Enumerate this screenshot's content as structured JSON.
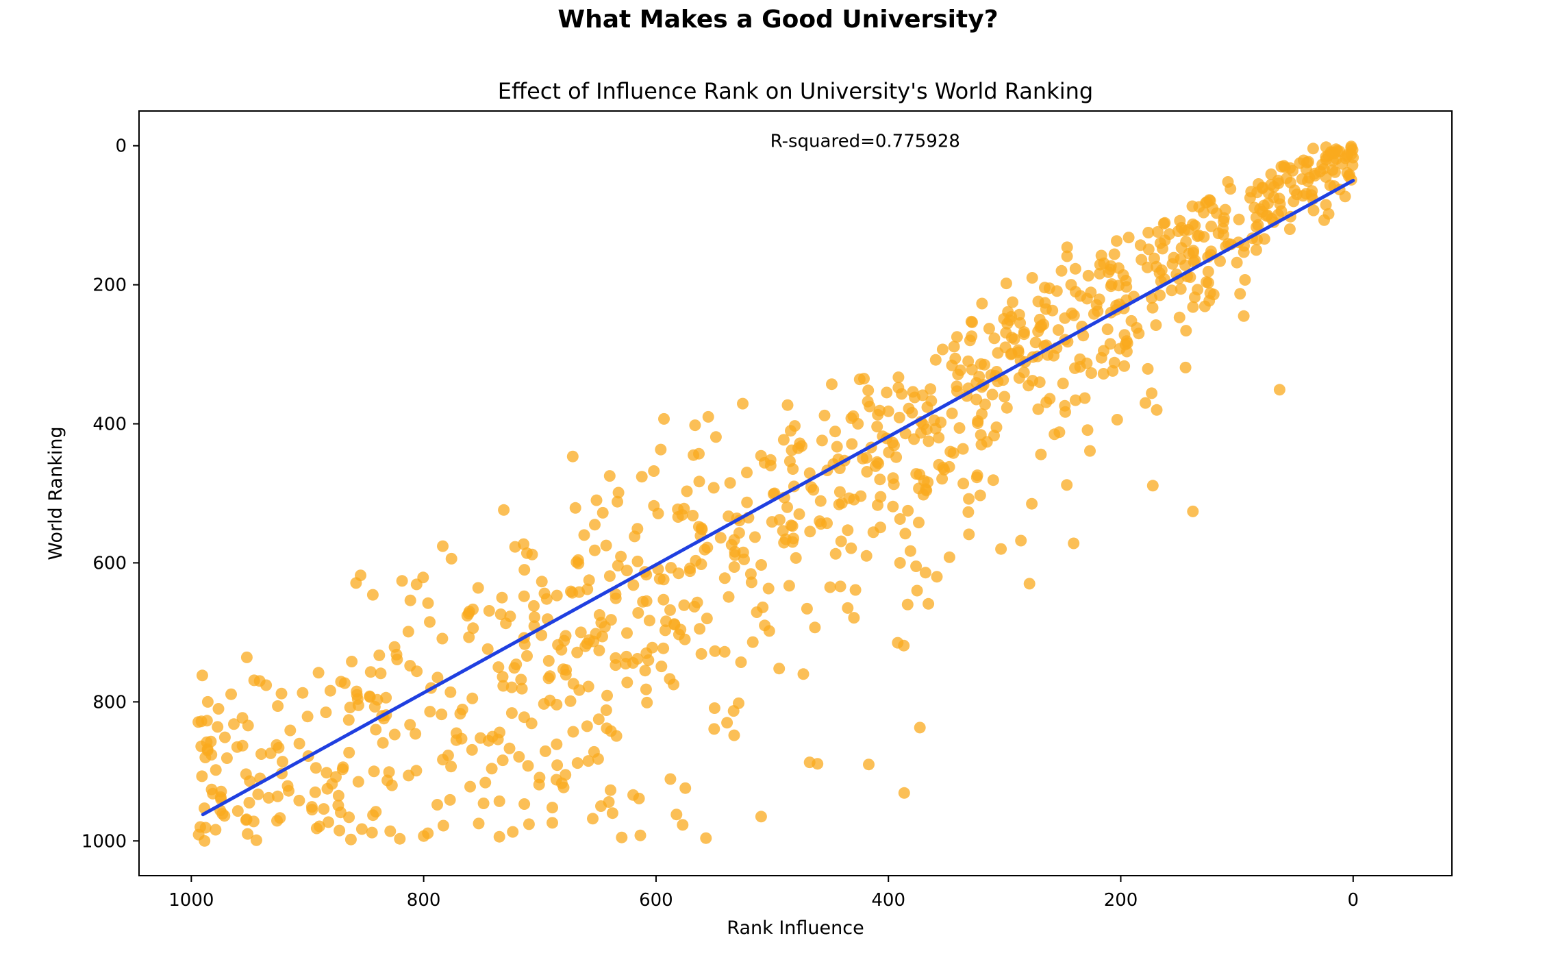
{
  "figure": {
    "suptitle": "What Makes a Good University?"
  },
  "chart_data": {
    "type": "scatter",
    "title": "Effect of Influence Rank on University's World Ranking",
    "xlabel": "Rank Influence",
    "ylabel": "World Ranking",
    "xlim": [
      1045,
      -85
    ],
    "ylim": [
      1050,
      -50
    ],
    "x_inverted": true,
    "y_inverted": true,
    "xticks": [
      1000,
      800,
      600,
      400,
      200,
      0
    ],
    "yticks": [
      0,
      200,
      400,
      600,
      800,
      1000
    ],
    "annotation": {
      "text": "R-squared=0.775928",
      "x": 420,
      "y": 0
    },
    "fit_line": {
      "x": [
        990,
        0
      ],
      "y": [
        962,
        50
      ]
    },
    "colors": {
      "points": "#f9a91e",
      "fit_line": "#1f3fe0"
    },
    "points_alpha": 0.75,
    "grid": false,
    "legend": "none",
    "point_count": 1000,
    "points_generation": "approximated: points estimated visually around the fit line"
  }
}
